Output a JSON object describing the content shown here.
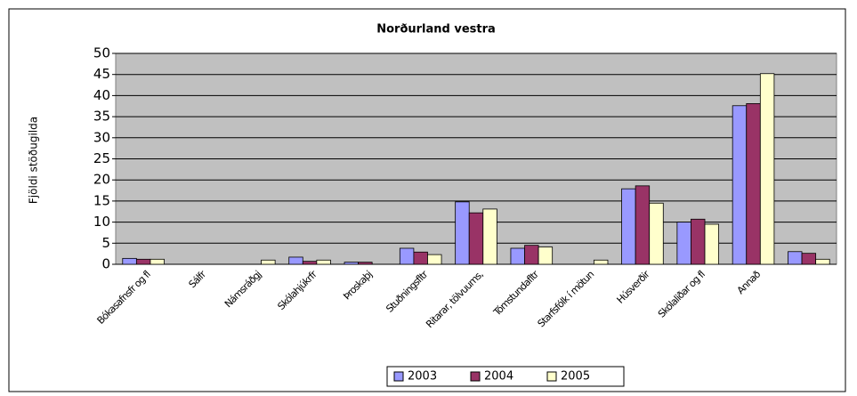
{
  "chart_data": {
    "type": "bar",
    "title": "Norðurland vestra",
    "ylabel": "Fjöldi stöðugilda",
    "categories": [
      "Bókasafnsfr og fl",
      "Sálfr",
      "Námsráðgj",
      "Skólahjúkrfr",
      "Þroskaþj",
      "Stuðningsfltr",
      "Ritarar, tölvuums,",
      "Tómstundafltr",
      "Starfsfólk í mötun",
      "Húsverðir",
      "Skólaliðar og fl",
      "Annað",
      null
    ],
    "series": [
      {
        "name": "2003",
        "color": "#9999ff",
        "values": [
          1.4,
          0,
          0,
          1.7,
          0.5,
          3.8,
          14.8,
          3.8,
          0,
          17.9,
          10.0,
          37.6,
          3.0
        ]
      },
      {
        "name": "2004",
        "color": "#993366",
        "values": [
          1.2,
          0,
          0,
          0.7,
          0.5,
          2.9,
          12.2,
          4.5,
          0,
          18.6,
          10.7,
          38.1,
          2.6
        ]
      },
      {
        "name": "2005",
        "color": "#ffffcc",
        "values": [
          1.2,
          0,
          1.0,
          1.0,
          0,
          2.3,
          13.1,
          4.1,
          1.0,
          14.5,
          9.5,
          45.2,
          1.2
        ]
      }
    ],
    "ylim": [
      0,
      50
    ],
    "yticks": [
      0,
      5,
      10,
      15,
      20,
      25,
      30,
      35,
      40,
      45,
      50
    ],
    "grid": true,
    "legend": "bottom"
  }
}
